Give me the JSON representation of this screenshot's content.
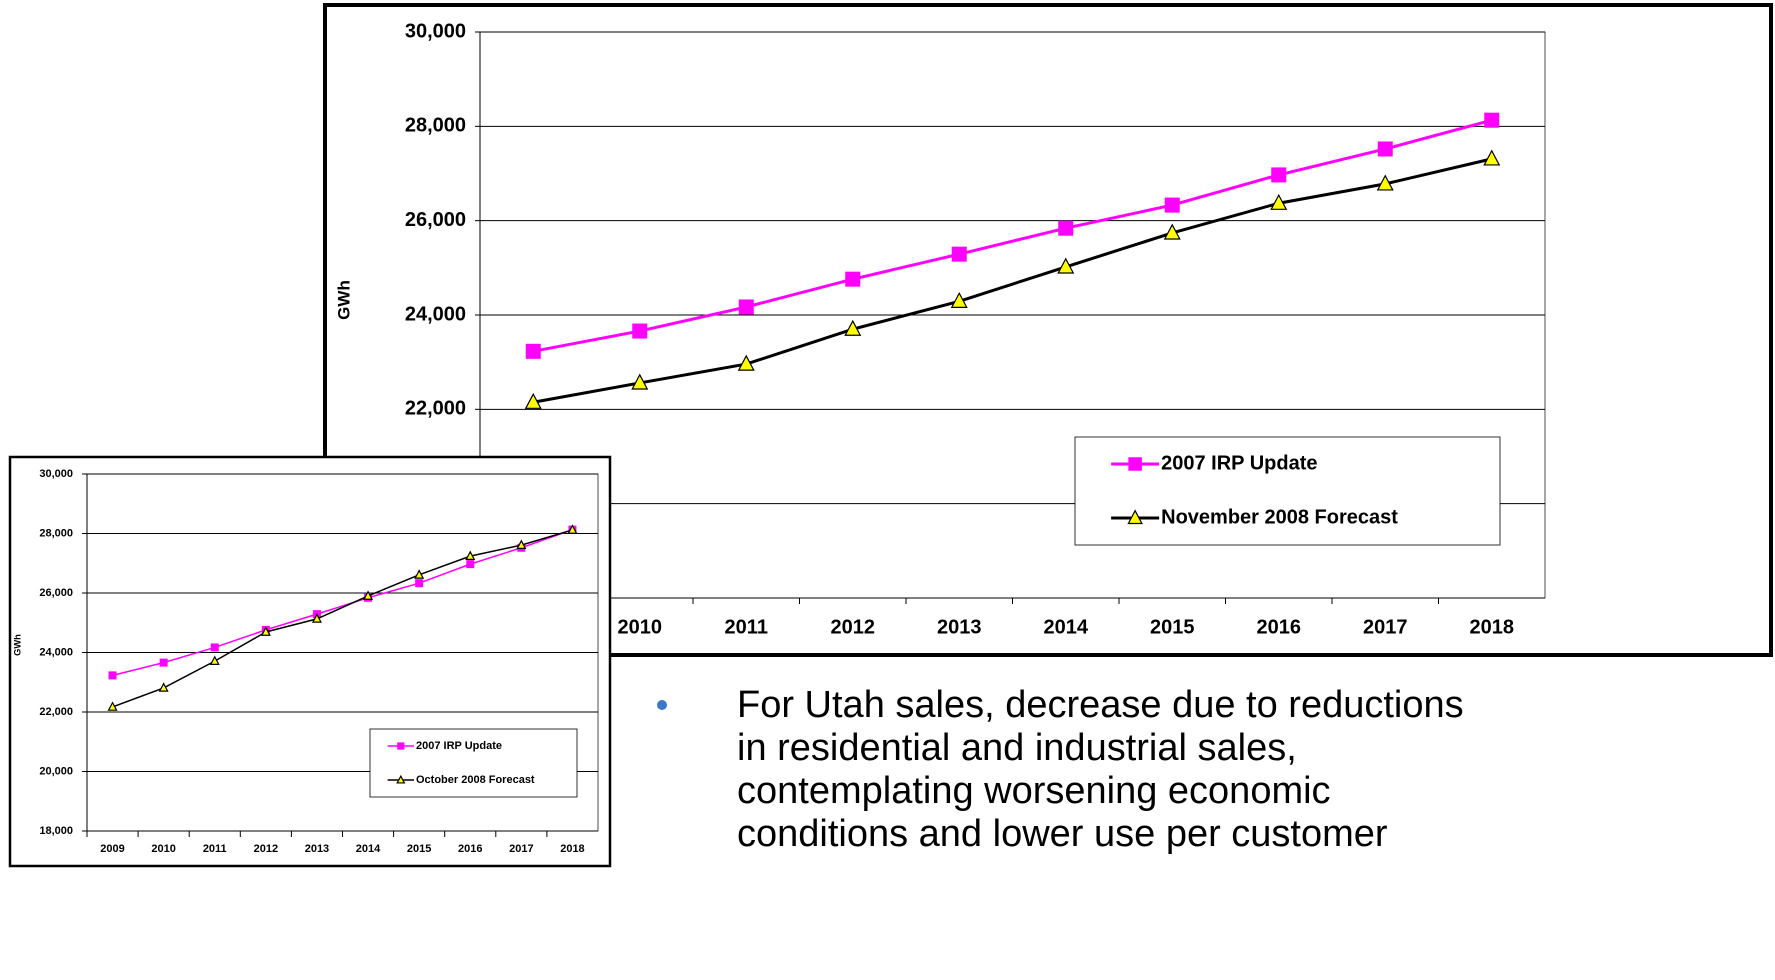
{
  "chart_data": [
    {
      "type": "line",
      "y_label": "GWh",
      "categories": [
        "2009",
        "2010",
        "2011",
        "2012",
        "2013",
        "2014",
        "2015",
        "2016",
        "2017",
        "2018"
      ],
      "series": [
        {
          "name": "2007 IRP Update",
          "color": "#ff00ff",
          "marker": "square",
          "values": [
            23230,
            23660,
            24170,
            24760,
            25290,
            25840,
            26330,
            26970,
            27520,
            28130
          ]
        },
        {
          "name": "November 2008 Forecast",
          "color": "#000000",
          "marker": "triangle",
          "marker_color": "#ffff00",
          "values": [
            22150,
            22560,
            22960,
            23700,
            24290,
            25020,
            25740,
            26370,
            26780,
            27310
          ]
        }
      ],
      "ylim": [
        18000,
        30000
      ],
      "yticks": [
        {
          "value": 18000,
          "label": "18,000"
        },
        {
          "value": 20000,
          "label": "20,000"
        },
        {
          "value": 22000,
          "label": "22,000"
        },
        {
          "value": 24000,
          "label": "24,000"
        },
        {
          "value": 26000,
          "label": "26,000"
        },
        {
          "value": 28000,
          "label": "28,000"
        },
        {
          "value": 30000,
          "label": "30,000"
        }
      ],
      "grid": true,
      "legend": "lower right"
    },
    {
      "type": "line",
      "y_label": "GWh",
      "categories": [
        "2009",
        "2010",
        "2011",
        "2012",
        "2013",
        "2014",
        "2015",
        "2016",
        "2017",
        "2018"
      ],
      "series": [
        {
          "name": "2007 IRP Update",
          "color": "#ff00ff",
          "marker": "square",
          "values": [
            23230,
            23660,
            24170,
            24760,
            25290,
            25840,
            26330,
            26970,
            27520,
            28130
          ]
        },
        {
          "name": "October 2008 Forecast",
          "color": "#000000",
          "marker": "triangle",
          "marker_color": "#ffff00",
          "values": [
            22170,
            22810,
            23710,
            24690,
            25130,
            25900,
            26610,
            27240,
            27610,
            28120
          ]
        }
      ],
      "ylim": [
        18000,
        30000
      ],
      "yticks": [
        {
          "value": 18000,
          "label": "18,000"
        },
        {
          "value": 20000,
          "label": "20,000"
        },
        {
          "value": 22000,
          "label": "22,000"
        },
        {
          "value": 24000,
          "label": "24,000"
        },
        {
          "value": 26000,
          "label": "26,000"
        },
        {
          "value": 28000,
          "label": "28,000"
        },
        {
          "value": 30000,
          "label": "30,000"
        }
      ],
      "grid": true,
      "legend": "lower right"
    }
  ],
  "bullet": {
    "lines": [
      "For Utah sales, decrease due to reductions",
      "in residential and industrial sales,",
      "contemplating worsening economic",
      "conditions and lower use per customer"
    ]
  }
}
